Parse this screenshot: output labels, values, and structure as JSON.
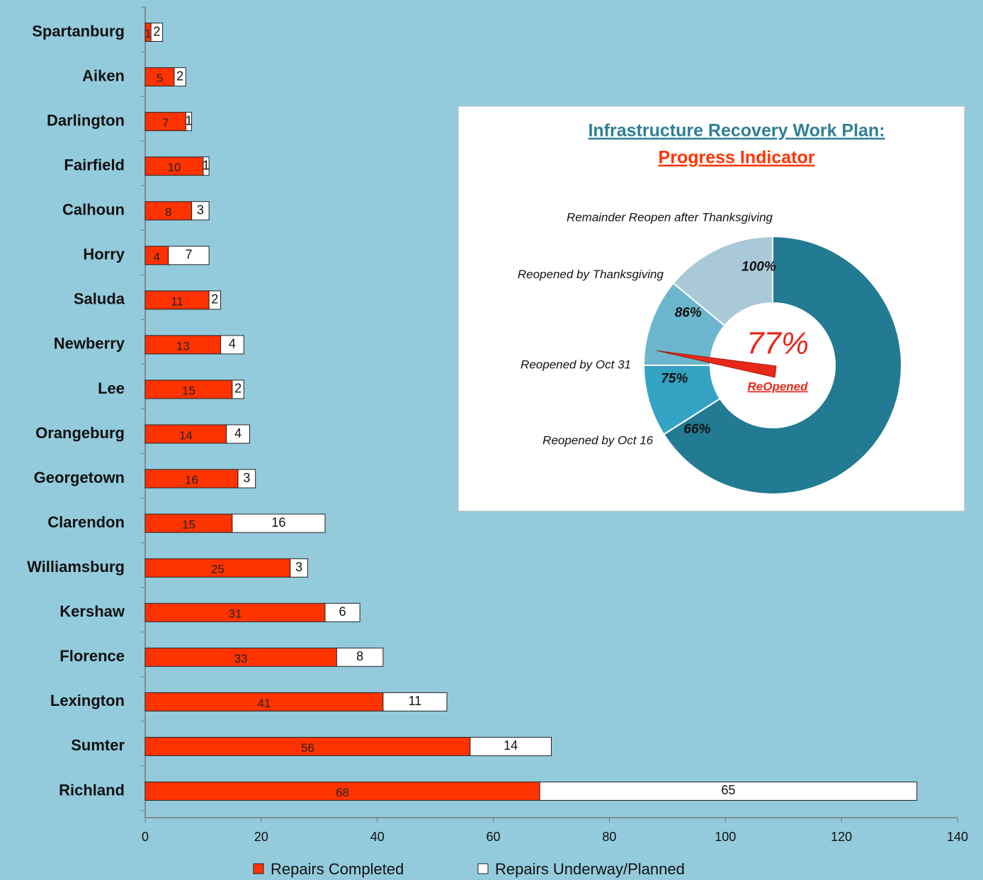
{
  "chart_data": [
    {
      "type": "bar",
      "orientation": "horizontal",
      "stacked": true,
      "categories": [
        "Spartanburg",
        "Aiken",
        "Darlington",
        "Fairfield",
        "Calhoun",
        "Horry",
        "Saluda",
        "Newberry",
        "Lee",
        "Orangeburg",
        "Georgetown",
        "Clarendon",
        "Williamsburg",
        "Kershaw",
        "Florence",
        "Lexington",
        "Sumter",
        "Richland"
      ],
      "series": [
        {
          "name": "Repairs Completed",
          "color": "#ff3300",
          "values": [
            1,
            5,
            7,
            10,
            8,
            4,
            11,
            13,
            15,
            14,
            16,
            15,
            25,
            31,
            33,
            41,
            56,
            68
          ]
        },
        {
          "name": "Repairs Underway/Planned",
          "color": "#ffffff",
          "values": [
            2,
            2,
            1,
            1,
            3,
            7,
            2,
            4,
            2,
            4,
            3,
            16,
            3,
            6,
            8,
            11,
            14,
            65
          ]
        }
      ],
      "xlim": [
        0,
        140
      ],
      "xticks": [
        0,
        20,
        40,
        60,
        80,
        100,
        120,
        140
      ],
      "legend": "bottom"
    },
    {
      "type": "gauge",
      "title": "Infrastructure Recovery Work Plan:",
      "subtitle": "Progress Indicator",
      "lim": [
        0,
        100
      ],
      "bands": [
        {
          "name": "Reopened by Oct 16",
          "value": 66,
          "label": "66%",
          "color": "#237a93"
        },
        {
          "name": "Reopened by Oct 31",
          "value": 75,
          "label": "75%",
          "color": "#35a3c4"
        },
        {
          "name": "Reopened by Thanksgiving",
          "value": 86,
          "label": "86%",
          "color": "#6cb6cd"
        },
        {
          "name": "Remainder Reopen after Thanksgiving",
          "value": 100,
          "label": "100%",
          "color": "#a9c9d8"
        }
      ],
      "needle": {
        "value": 77,
        "label": "77%",
        "caption": "ReOpened",
        "color": "#e8281a"
      }
    }
  ]
}
